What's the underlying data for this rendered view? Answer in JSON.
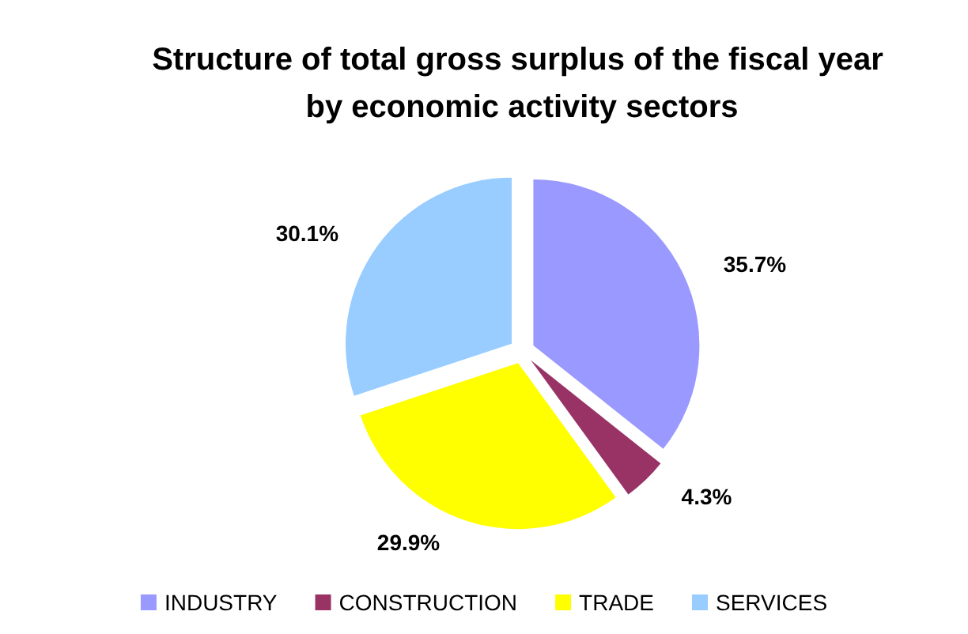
{
  "chart_data": {
    "type": "pie",
    "title": "Structure of total gross surplus of the fiscal year by economic activity sectors",
    "categories": [
      "INDUSTRY",
      "CONSTRUCTION",
      "TRADE",
      "SERVICES"
    ],
    "values": [
      35.7,
      4.3,
      29.9,
      30.1
    ],
    "colors": [
      "#9999ff",
      "#993366",
      "#ffff00",
      "#99ccff"
    ],
    "value_labels": [
      "35.7%",
      "4.3%",
      "29.9%",
      "30.1%"
    ],
    "legend": "bottom"
  }
}
